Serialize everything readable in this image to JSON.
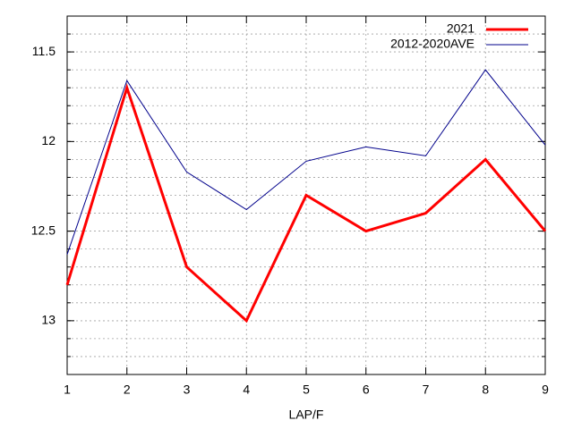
{
  "chart_data": {
    "type": "line",
    "x_label": "LAP/F",
    "x": [
      1,
      2,
      3,
      4,
      5,
      6,
      7,
      8,
      9
    ],
    "xlim": [
      1,
      9
    ],
    "xticks": [
      1,
      2,
      3,
      4,
      5,
      6,
      7,
      8,
      9
    ],
    "ylim": [
      13.3,
      11.3
    ],
    "yticks": [
      11.5,
      12,
      12.5,
      13
    ],
    "grid": true,
    "legend": "top-right",
    "series": [
      {
        "name": "2021",
        "color": "#ff0000",
        "values": [
          12.8,
          11.7,
          12.7,
          13.0,
          12.3,
          12.5,
          12.4,
          12.1,
          12.5
        ]
      },
      {
        "name": "2012-2020AVE",
        "color": "#00008b",
        "values": [
          12.63,
          11.66,
          12.17,
          12.38,
          12.11,
          12.03,
          12.08,
          11.6,
          12.02
        ]
      }
    ]
  }
}
